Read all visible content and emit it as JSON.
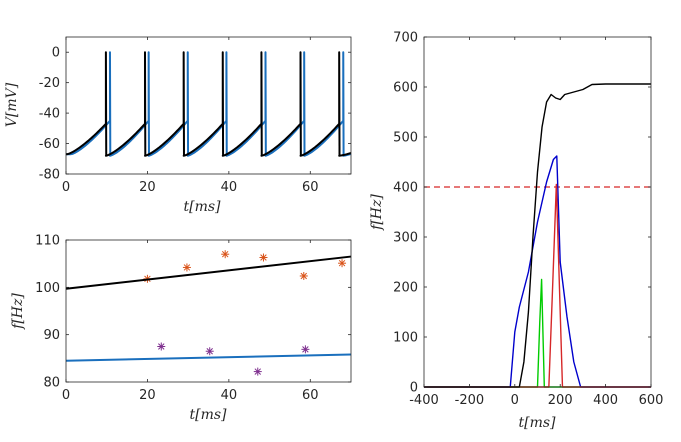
{
  "chart_data": [
    {
      "type": "line",
      "panel": "top-left",
      "xlabel_var": "t",
      "xlabel_unit": "[ms]",
      "ylabel_var": "V",
      "ylabel_unit": "[mV]",
      "xlim": [
        0,
        70
      ],
      "ylim": [
        -80,
        10
      ],
      "xticks": [
        0,
        20,
        40,
        60
      ],
      "yticks": [
        0,
        -20,
        -40,
        -60,
        -80
      ],
      "xtick_labels": [
        "0",
        "20",
        "40",
        "60"
      ],
      "ytick_labels": [
        "0",
        "-20",
        "-40",
        "-60",
        "-80"
      ],
      "series": [
        {
          "name": "black",
          "color": "#000000",
          "spike_times": [
            9.8,
            19.4,
            28.9,
            38.5,
            48.0,
            57.6,
            67.1
          ],
          "rest": -67,
          "threshold": -47,
          "peak": 0,
          "reset": -68
        },
        {
          "name": "blue",
          "color": "#1a6fbd",
          "spike_times": [
            10.8,
            20.3,
            29.9,
            39.4,
            49.0,
            58.5,
            68.1
          ],
          "rest": -67,
          "threshold": -45,
          "peak": 0,
          "reset": -68
        }
      ]
    },
    {
      "type": "scatter",
      "panel": "bottom-left",
      "xlabel_var": "t",
      "xlabel_unit": "[ms]",
      "ylabel_var": "f",
      "ylabel_unit": "[Hz]",
      "xlim": [
        0,
        70
      ],
      "ylim": [
        80,
        110
      ],
      "xticks": [
        0,
        20,
        40,
        60
      ],
      "yticks": [
        80,
        90,
        100,
        110
      ],
      "xtick_labels": [
        "0",
        "20",
        "40",
        "60"
      ],
      "ytick_labels": [
        "80",
        "90",
        "100",
        "110"
      ],
      "series": [
        {
          "name": "orange-points",
          "color": "#d95319",
          "x": [
            20,
            29.7,
            39.1,
            48.5,
            58.4,
            67.8
          ],
          "y": [
            101.8,
            104.2,
            107.0,
            106.3,
            102.4,
            105.1
          ]
        },
        {
          "name": "purple-points",
          "color": "#7e2f8e",
          "x": [
            23.4,
            35.3,
            47.1,
            58.8
          ],
          "y": [
            87.5,
            86.5,
            82.2,
            86.9
          ]
        },
        {
          "name": "black-fit",
          "color": "#000000",
          "type": "line",
          "x": [
            0,
            70
          ],
          "y": [
            99.7,
            106.5
          ]
        },
        {
          "name": "blue-fit",
          "color": "#1a6fbd",
          "type": "line",
          "x": [
            0,
            70
          ],
          "y": [
            84.5,
            85.8
          ]
        }
      ]
    },
    {
      "type": "line",
      "panel": "right",
      "xlabel_var": "t",
      "xlabel_unit": "[ms]",
      "ylabel_var": "f",
      "ylabel_unit": "[Hz]",
      "xlim": [
        -400,
        600
      ],
      "ylim": [
        0,
        700
      ],
      "xticks": [
        -400,
        -200,
        0,
        200,
        400,
        600
      ],
      "yticks": [
        0,
        100,
        200,
        300,
        400,
        500,
        600,
        700
      ],
      "xtick_labels": [
        "-400",
        "-200",
        "0",
        "200",
        "400",
        "600"
      ],
      "ytick_labels": [
        "0",
        "100",
        "200",
        "300",
        "400",
        "500",
        "600",
        "700"
      ],
      "threshold": {
        "y": 400,
        "color": "#d62728",
        "style": "dashed"
      },
      "series": [
        {
          "name": "black",
          "color": "#000000",
          "x": [
            -400,
            20,
            40,
            60,
            80,
            100,
            120,
            140,
            160,
            180,
            200,
            220,
            260,
            300,
            340,
            400,
            600
          ],
          "y": [
            0,
            0,
            50,
            150,
            300,
            430,
            520,
            570,
            585,
            578,
            575,
            585,
            590,
            595,
            605,
            606,
            606
          ]
        },
        {
          "name": "blue",
          "color": "#0000cc",
          "x": [
            -400,
            -20,
            0,
            20,
            60,
            100,
            140,
            170,
            185,
            200,
            230,
            260,
            290,
            600
          ],
          "y": [
            0,
            0,
            110,
            160,
            230,
            330,
            410,
            455,
            462,
            250,
            140,
            50,
            0,
            0
          ]
        },
        {
          "name": "green",
          "color": "#00cc00",
          "x": [
            -400,
            100,
            110,
            118,
            130,
            600
          ],
          "y": [
            0,
            0,
            130,
            215,
            0,
            0
          ]
        },
        {
          "name": "red",
          "color": "#d62728",
          "x": [
            -400,
            150,
            165,
            183,
            200,
            210,
            600
          ],
          "y": [
            0,
            0,
            180,
            405,
            150,
            0,
            0
          ]
        }
      ]
    }
  ]
}
